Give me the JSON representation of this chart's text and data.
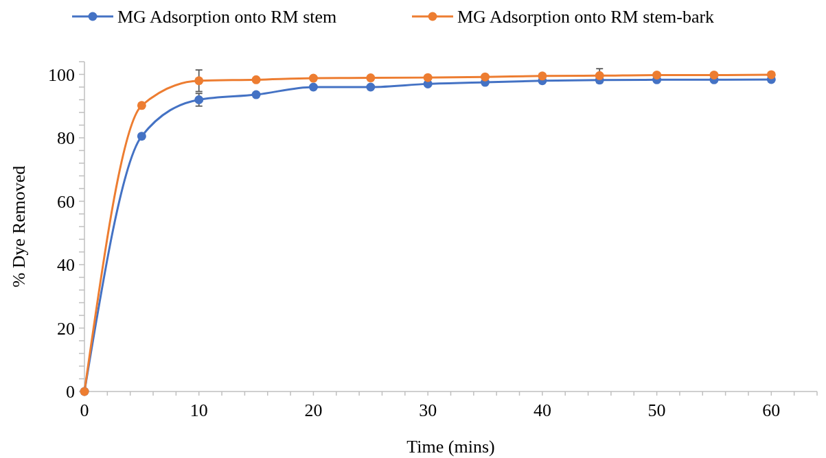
{
  "chart_data": {
    "type": "line",
    "xlabel": "Time (mins)",
    "ylabel": "% Dye Removed",
    "x": [
      0,
      5,
      10,
      15,
      20,
      25,
      30,
      35,
      40,
      45,
      50,
      55,
      60
    ],
    "series": [
      {
        "name": "MG Adsorption onto RM stem",
        "color": "#4472c4",
        "values": [
          0,
          80.5,
          92,
          93.6,
          96,
          96,
          97,
          97.5,
          98,
          98.2,
          98.3,
          98.3,
          98.4
        ],
        "errors": [
          null,
          null,
          2,
          null,
          null,
          null,
          null,
          null,
          null,
          null,
          null,
          null,
          null
        ]
      },
      {
        "name": "MG Adsorption onto RM stem-bark",
        "color": "#ed7d31",
        "values": [
          0,
          90.2,
          98,
          98.3,
          98.8,
          98.9,
          99,
          99.2,
          99.5,
          99.6,
          99.8,
          99.8,
          99.9
        ],
        "errors": [
          null,
          null,
          3.4,
          null,
          null,
          null,
          null,
          null,
          null,
          2.2,
          null,
          null,
          null
        ]
      }
    ],
    "xlim": [
      0,
      64
    ],
    "xticks": [
      0,
      {
        "value": 2,
        "label": null
      },
      {
        "value": 4,
        "label": null
      },
      {
        "value": 6,
        "label": null
      },
      {
        "value": 8,
        "label": null
      },
      10,
      {
        "value": 12,
        "label": null
      },
      {
        "value": 14,
        "label": null
      },
      {
        "value": 16,
        "label": null
      },
      {
        "value": 18,
        "label": null
      },
      20,
      {
        "value": 22,
        "label": null
      },
      {
        "value": 24,
        "label": null
      },
      {
        "value": 26,
        "label": null
      },
      {
        "value": 28,
        "label": null
      },
      30,
      {
        "value": 32,
        "label": null
      },
      {
        "value": 34,
        "label": null
      },
      {
        "value": 36,
        "label": null
      },
      {
        "value": 38,
        "label": null
      },
      40,
      {
        "value": 42,
        "label": null
      },
      {
        "value": 44,
        "label": null
      },
      {
        "value": 46,
        "label": null
      },
      {
        "value": 48,
        "label": null
      },
      50,
      {
        "value": 52,
        "label": null
      },
      {
        "value": 54,
        "label": null
      },
      {
        "value": 56,
        "label": null
      },
      {
        "value": 58,
        "label": null
      },
      60,
      {
        "value": 62,
        "label": null
      },
      {
        "value": 64,
        "label": null
      }
    ],
    "ylim": [
      0,
      104
    ],
    "yticks": [
      0,
      {
        "value": 4,
        "label": null
      },
      {
        "value": 8,
        "label": null
      },
      {
        "value": 12,
        "label": null
      },
      {
        "value": 16,
        "label": null
      },
      20,
      {
        "value": 24,
        "label": null
      },
      {
        "value": 28,
        "label": null
      },
      {
        "value": 32,
        "label": null
      },
      {
        "value": 36,
        "label": null
      },
      40,
      {
        "value": 44,
        "label": null
      },
      {
        "value": 48,
        "label": null
      },
      {
        "value": 52,
        "label": null
      },
      {
        "value": 56,
        "label": null
      },
      60,
      {
        "value": 64,
        "label": null
      },
      {
        "value": 68,
        "label": null
      },
      {
        "value": 72,
        "label": null
      },
      {
        "value": 76,
        "label": null
      },
      80,
      {
        "value": 84,
        "label": null
      },
      {
        "value": 88,
        "label": null
      },
      {
        "value": 92,
        "label": null
      },
      {
        "value": 96,
        "label": null
      },
      100,
      {
        "value": 104,
        "label": null
      }
    ],
    "marker": "circle",
    "line_style": "solid",
    "legend": "top",
    "grid": false
  }
}
